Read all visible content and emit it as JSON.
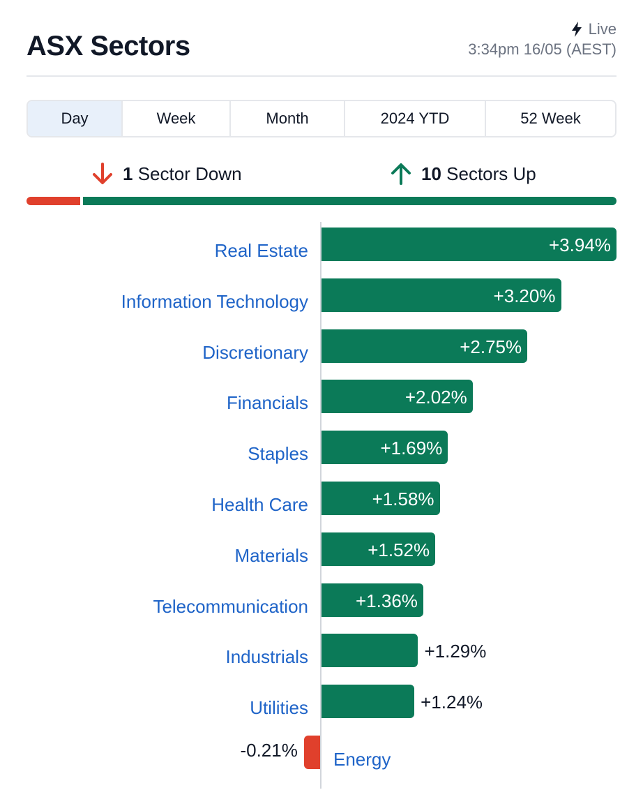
{
  "header": {
    "title": "ASX Sectors",
    "live_label": "Live",
    "timestamp": "3:34pm 16/05 (AEST)"
  },
  "tabs": [
    {
      "label": "Day",
      "active": true
    },
    {
      "label": "Week",
      "active": false
    },
    {
      "label": "Month",
      "active": false
    },
    {
      "label": "2024 YTD",
      "active": false
    },
    {
      "label": "52 Week",
      "active": false
    }
  ],
  "summary": {
    "down_count": "1",
    "down_label": "Sector Down",
    "up_count": "10",
    "up_label": "Sectors Up"
  },
  "colors": {
    "up": "#0b7a58",
    "down": "#e0402c",
    "label": "#1f64c8"
  },
  "icons": {
    "live": "lightning-bolt-icon",
    "down": "arrow-down-icon",
    "up": "arrow-up-icon"
  },
  "chart_data": {
    "type": "bar",
    "orientation": "horizontal",
    "categories": [
      "Real Estate",
      "Information Technology",
      "Discretionary",
      "Financials",
      "Staples",
      "Health Care",
      "Materials",
      "Telecommunication",
      "Industrials",
      "Utilities",
      "Energy"
    ],
    "values": [
      3.94,
      3.2,
      2.75,
      2.02,
      1.69,
      1.58,
      1.52,
      1.36,
      1.29,
      1.24,
      -0.21
    ],
    "value_labels": [
      "+3.94%",
      "+3.20%",
      "+2.75%",
      "+2.02%",
      "+1.69%",
      "+1.58%",
      "+1.52%",
      "+1.36%",
      "+1.29%",
      "+1.24%",
      "-0.21%"
    ]
  }
}
